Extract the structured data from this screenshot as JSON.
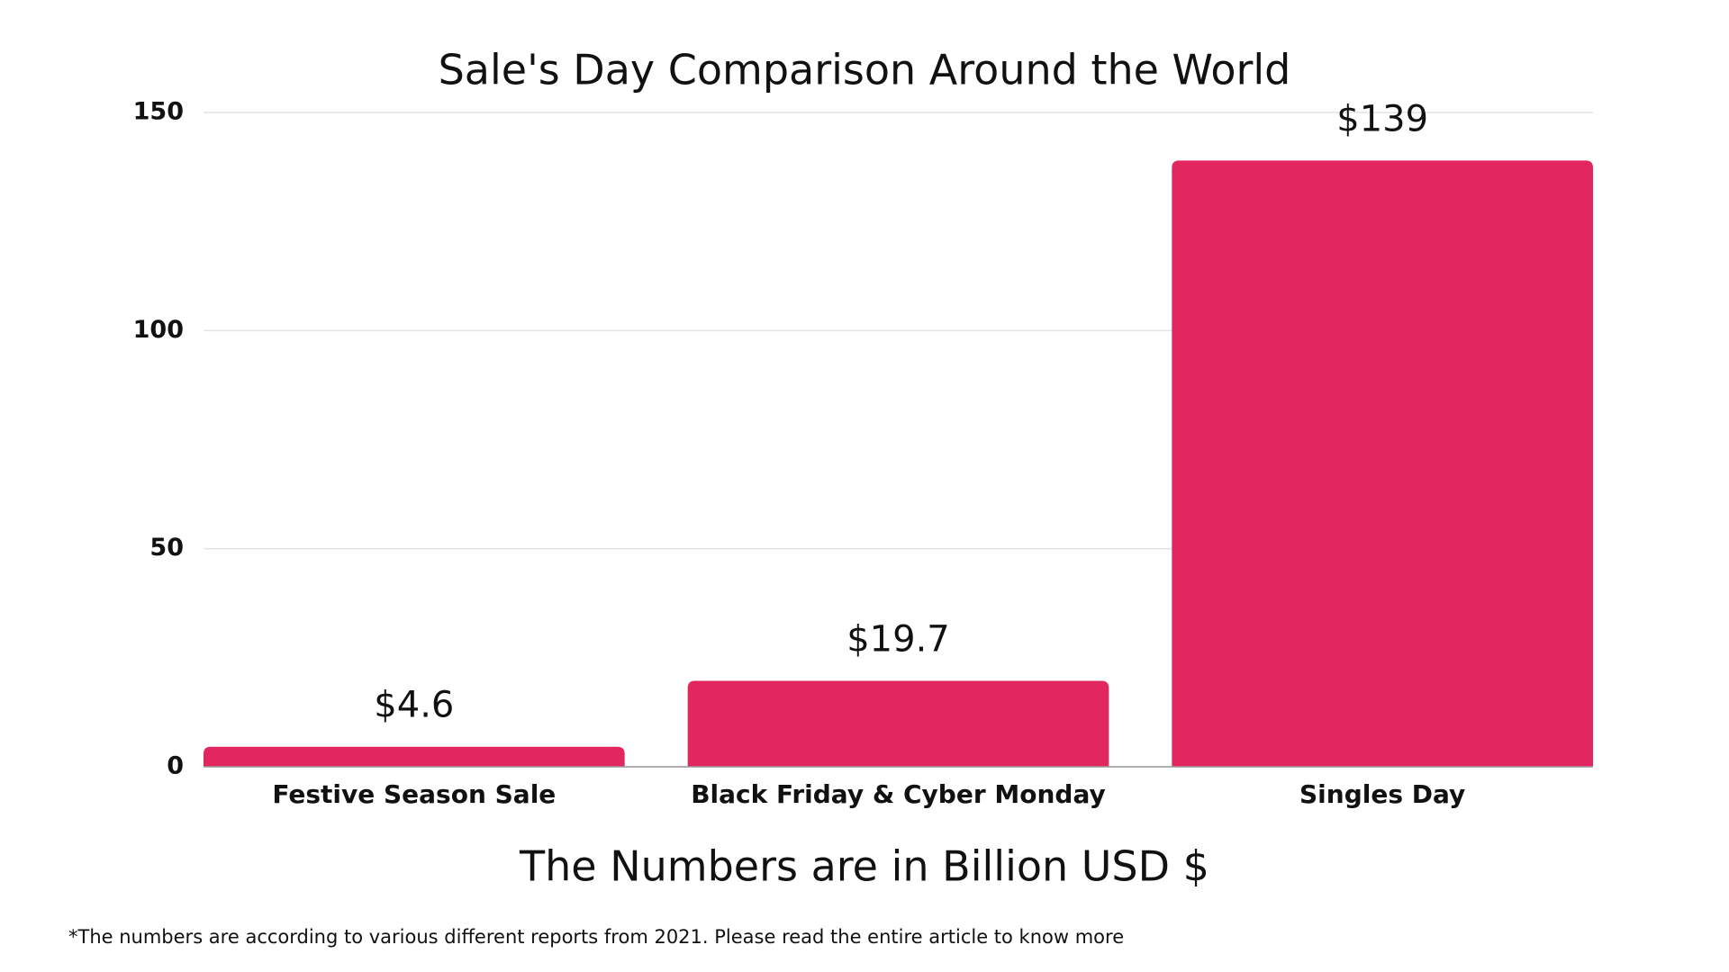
{
  "chart_data": {
    "type": "bar",
    "title": "Sale's Day Comparison Around the World",
    "categories": [
      "Festive Season Sale",
      "Black Friday & Cyber Monday",
      "Singles Day"
    ],
    "values": [
      4.6,
      19.7,
      139
    ],
    "value_labels": [
      "$4.6",
      "$19.7",
      "$139"
    ],
    "color": "#e2265f",
    "ylim": [
      0,
      150
    ],
    "yticks": [
      0,
      50,
      100,
      150
    ],
    "grid": true,
    "x_axis_label": "The Numbers are in Billion USD $",
    "footnote": "*The numbers are according to various different reports from 2021. Please read the entire article to know more"
  }
}
